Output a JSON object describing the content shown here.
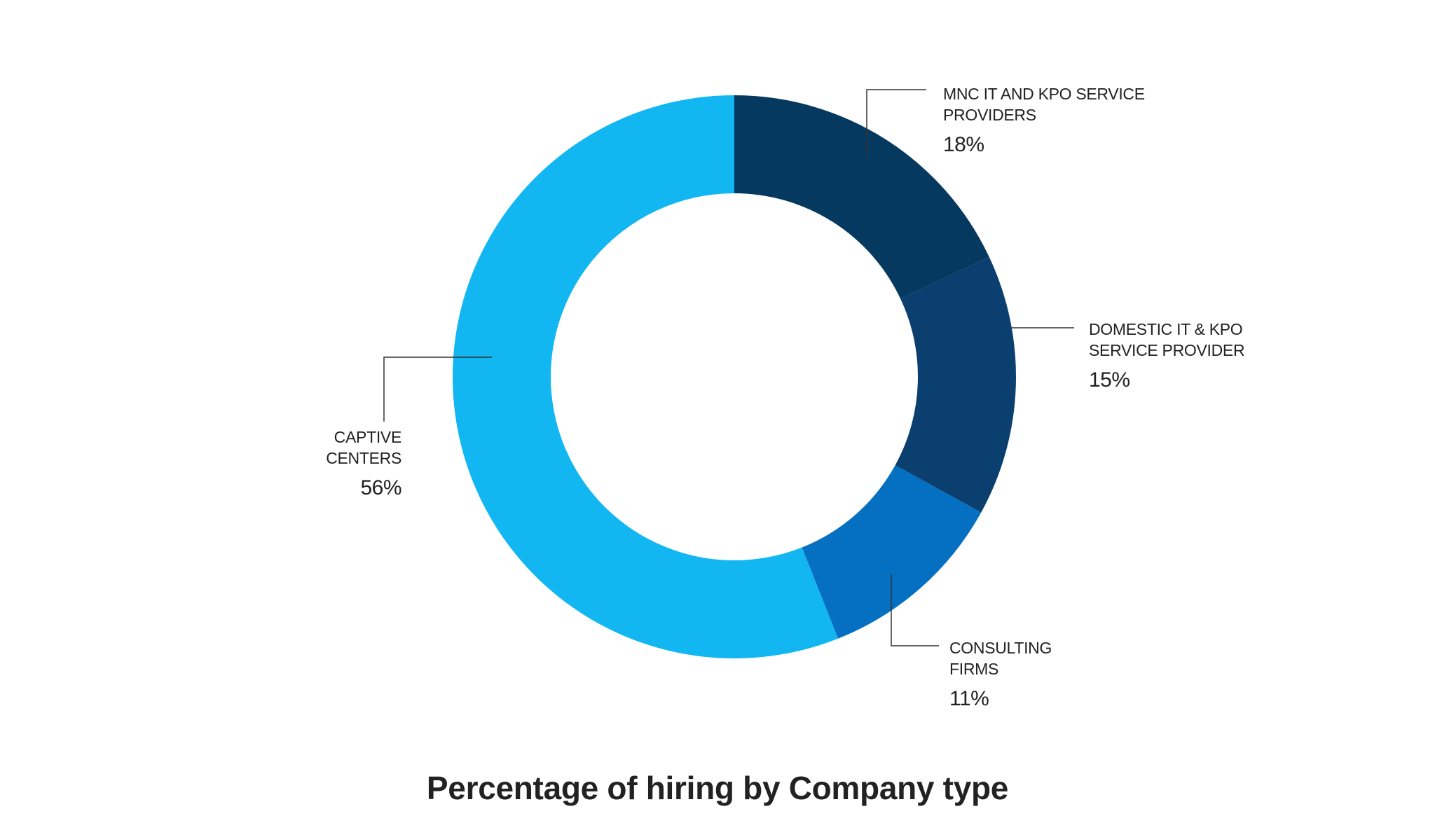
{
  "chart_data": {
    "type": "pie",
    "variant": "donut",
    "title": "Percentage of hiring by Company type",
    "slices": [
      {
        "label_lines": [
          "MNC IT AND KPO SERVICE",
          "PROVIDERS"
        ],
        "value": 18,
        "value_label": "18%",
        "color": "#06395F"
      },
      {
        "label_lines": [
          "DOMESTIC IT & KPO",
          "SERVICE PROVIDER"
        ],
        "value": 15,
        "value_label": "15%",
        "color": "#0A3F70"
      },
      {
        "label_lines": [
          "CONSULTING",
          "FIRMS"
        ],
        "value": 11,
        "value_label": "11%",
        "color": "#0570C2"
      },
      {
        "label_lines": [
          "CAPTIVE",
          "CENTERS"
        ],
        "value": 56,
        "value_label": "56%",
        "color": "#12B7F2"
      }
    ],
    "legend": "none",
    "grid": false
  }
}
